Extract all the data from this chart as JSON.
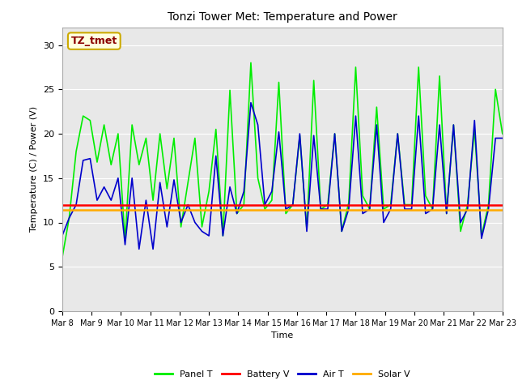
{
  "title": "Tonzi Tower Met: Temperature and Power",
  "ylabel": "Temperature (C) / Power (V)",
  "xlabel": "Time",
  "annotation": "TZ_tmet",
  "ylim": [
    0,
    32
  ],
  "yticks": [
    0,
    5,
    10,
    15,
    20,
    25,
    30
  ],
  "xtick_labels": [
    "Mar 8",
    "Mar 9",
    "Mar 10",
    "Mar 11",
    "Mar 12",
    "Mar 13",
    "Mar 14",
    "Mar 15",
    "Mar 16",
    "Mar 17",
    "Mar 18",
    "Mar 19",
    "Mar 20",
    "Mar 21",
    "Mar 22",
    "Mar 23"
  ],
  "plot_bg_color": "#e8e8e8",
  "fig_bg_color": "#ffffff",
  "legend_entries": [
    "Panel T",
    "Battery V",
    "Air T",
    "Solar V"
  ],
  "legend_colors": [
    "#00ee00",
    "#ff0000",
    "#0000cc",
    "#ffaa00"
  ],
  "panel_T": [
    6.0,
    10.5,
    18.0,
    22.0,
    21.5,
    16.8,
    21.0,
    16.5,
    20.0,
    8.0,
    21.0,
    16.5,
    19.5,
    12.5,
    20.0,
    13.8,
    19.5,
    9.5,
    14.5,
    19.5,
    9.5,
    13.5,
    20.5,
    8.5,
    24.9,
    11.0,
    12.0,
    28.0,
    15.0,
    11.5,
    12.5,
    25.8,
    11.0,
    12.0,
    19.8,
    9.2,
    26.0,
    11.5,
    12.0,
    20.0,
    9.0,
    12.2,
    27.5,
    13.0,
    11.5,
    23.0,
    11.5,
    12.0,
    20.0,
    12.0,
    12.0,
    27.5,
    13.0,
    11.5,
    26.5,
    11.0,
    21.0,
    9.0,
    12.0,
    20.5,
    8.5,
    12.0,
    25.0,
    20.0
  ],
  "air_T": [
    8.5,
    10.5,
    12.0,
    17.0,
    17.2,
    12.5,
    14.0,
    12.5,
    15.0,
    7.5,
    15.0,
    7.0,
    12.5,
    7.0,
    14.5,
    9.5,
    14.8,
    10.0,
    12.0,
    10.0,
    9.0,
    8.5,
    17.5,
    8.5,
    14.0,
    11.0,
    13.5,
    23.5,
    21.0,
    12.0,
    13.5,
    20.2,
    11.5,
    12.0,
    20.0,
    9.0,
    19.8,
    11.5,
    11.5,
    20.0,
    9.0,
    11.5,
    22.0,
    11.0,
    11.5,
    21.0,
    10.0,
    11.5,
    20.0,
    11.5,
    11.5,
    22.0,
    11.0,
    11.5,
    21.0,
    11.0,
    21.0,
    10.0,
    11.5,
    21.5,
    8.2,
    11.5,
    19.5,
    19.5
  ],
  "battery_V": 12.0,
  "solar_V": 11.4,
  "n_points": 64
}
